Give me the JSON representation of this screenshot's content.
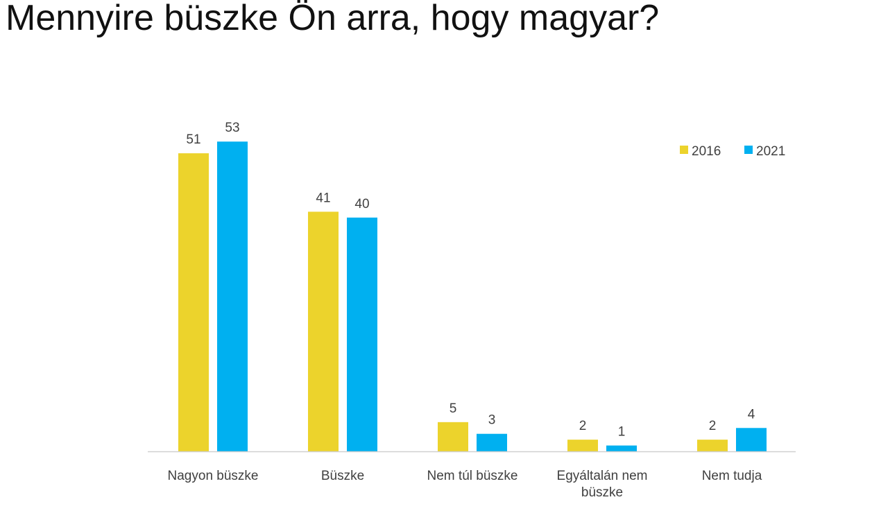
{
  "chart_data": {
    "type": "bar",
    "title": "Mennyire büszke Ön arra, hogy magyar?",
    "categories": [
      [
        "Nagyon büszke"
      ],
      [
        "Büszke"
      ],
      [
        "Nem túl büszke"
      ],
      [
        "Egyáltalán nem",
        "büszke"
      ],
      [
        "Nem tudja"
      ]
    ],
    "series": [
      {
        "name": "2016",
        "color": "#ecd32c",
        "values": [
          51,
          41,
          5,
          2,
          2
        ]
      },
      {
        "name": "2021",
        "color": "#00b0f0",
        "values": [
          53,
          40,
          3,
          1,
          4
        ]
      }
    ],
    "ylim": [
      0,
      60
    ],
    "grid": false,
    "legend": "top-right",
    "axis_color": "#d0d0d0"
  }
}
